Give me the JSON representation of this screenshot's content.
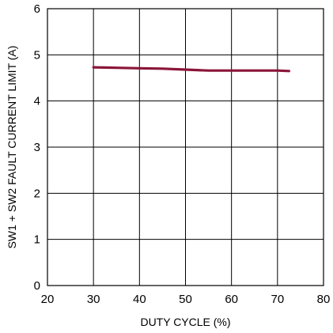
{
  "chart_data": {
    "type": "line",
    "xlabel": "DUTY CYCLE (%)",
    "ylabel": "SW1 + SW2 FAULT CURRENT LIMIT (A)",
    "xlim": [
      20,
      80
    ],
    "ylim": [
      0,
      6
    ],
    "xticks": [
      20,
      30,
      40,
      50,
      60,
      70,
      80
    ],
    "yticks": [
      0,
      1,
      2,
      3,
      4,
      5,
      6
    ],
    "grid": true,
    "series": [
      {
        "color": "#8b1538",
        "x": [
          30,
          35,
          40,
          45,
          50,
          55,
          60,
          65,
          70,
          72.5
        ],
        "y": [
          4.73,
          4.72,
          4.71,
          4.7,
          4.68,
          4.66,
          4.66,
          4.66,
          4.66,
          4.65
        ]
      }
    ]
  }
}
